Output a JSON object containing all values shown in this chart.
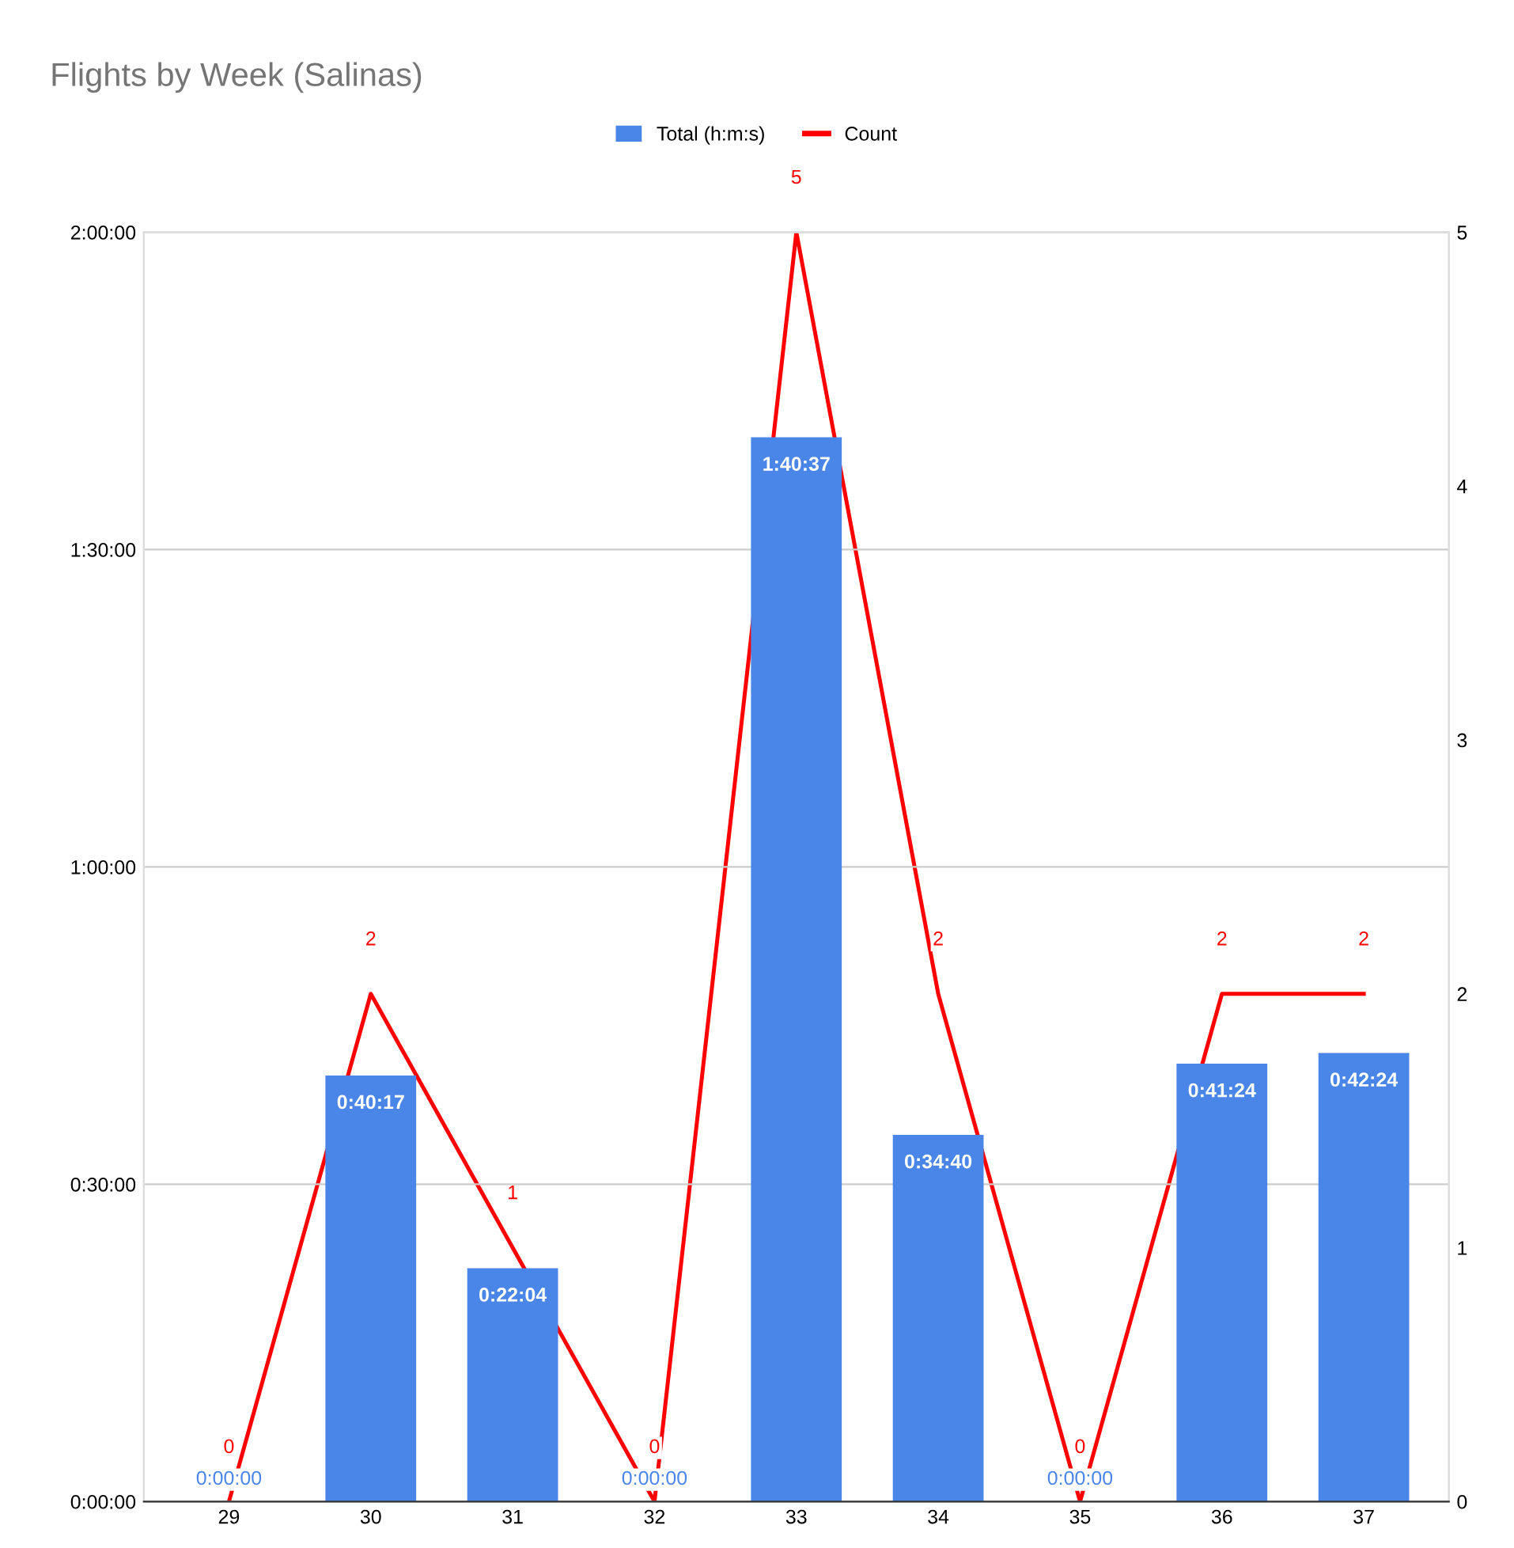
{
  "chart_data": {
    "type": "bar",
    "title": "Flights by Week (Salinas)",
    "categories": [
      "29",
      "30",
      "31",
      "32",
      "33",
      "34",
      "35",
      "36",
      "37"
    ],
    "series": [
      {
        "name": "Total (h:m:s)",
        "color": "#4a86e8",
        "values": [
          0,
          2417,
          1324,
          0,
          6037,
          2080,
          0,
          2484,
          2544
        ],
        "value_labels": [
          "0:00:00",
          "0:40:17",
          "0:22:04",
          "0:00:00",
          "1:40:37",
          "0:34:40",
          "0:00:00",
          "0:41:24",
          "0:42:24"
        ]
      },
      {
        "name": "Count",
        "type": "line",
        "axis": "y2",
        "color": "#ff0000",
        "values": [
          0,
          2,
          1,
          0,
          5,
          2,
          0,
          2,
          2
        ],
        "value_labels": [
          "0",
          "2",
          "1",
          "0",
          "5",
          "2",
          "0",
          "2",
          "2"
        ]
      }
    ],
    "ylim": [
      0,
      7200
    ],
    "yticks": [
      {
        "value": 0,
        "label": "0:00:00"
      },
      {
        "value": 1800,
        "label": "0:30:00"
      },
      {
        "value": 3600,
        "label": "1:00:00"
      },
      {
        "value": 5400,
        "label": "1:30:00"
      },
      {
        "value": 7200,
        "label": "2:00:00"
      }
    ],
    "y2lim": [
      0,
      5
    ],
    "y2ticks": [
      0,
      1,
      2,
      3,
      4,
      5
    ],
    "grid": "y",
    "legend": "top",
    "line_style": "solid",
    "marker": "none"
  }
}
